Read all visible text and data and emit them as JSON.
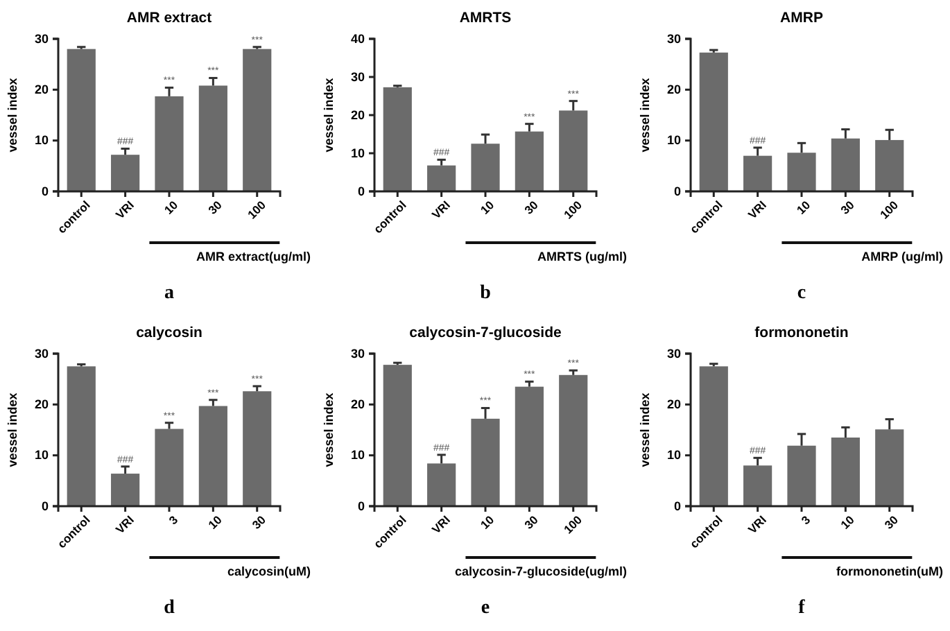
{
  "chart_data": [
    {
      "type": "bar",
      "title": "AMR extract",
      "ylabel": "vessel index",
      "xlabel": "AMR extract(ug/ml)",
      "categories": [
        "control",
        "VRI",
        "10",
        "30",
        "100"
      ],
      "values": [
        28,
        7.2,
        18.7,
        20.8,
        28
      ],
      "errors": [
        0.4,
        1.2,
        1.7,
        1.5,
        0.4
      ],
      "color": "#6b6b6b",
      "ylim": [
        0,
        30
      ],
      "yticks": [
        0,
        10,
        20,
        30
      ],
      "grid": false,
      "annotations": [
        {
          "text": "###",
          "x": "VRI",
          "y": 8.4
        },
        {
          "text": "***",
          "x": "10",
          "y": 20.4
        },
        {
          "text": "***",
          "x": "30",
          "y": 22.3
        },
        {
          "text": "***",
          "x": "100",
          "y": 28.4
        },
        "a"
      ]
    },
    {
      "type": "bar",
      "title": "AMRTS",
      "ylabel": "vessel index",
      "xlabel": "AMRTS (ug/ml)",
      "categories": [
        "control",
        "VRI",
        "10",
        "30",
        "100"
      ],
      "values": [
        27.3,
        6.8,
        12.5,
        15.7,
        21.2
      ],
      "errors": [
        0.4,
        1.5,
        2.4,
        2.0,
        2.5
      ],
      "color": "#6b6b6b",
      "ylim": [
        0,
        40
      ],
      "yticks": [
        0,
        10,
        20,
        30,
        40
      ],
      "grid": false,
      "annotations": [
        {
          "text": "###",
          "x": "VRI",
          "y": 8.3
        },
        {
          "text": "***",
          "x": "30",
          "y": 17.7
        },
        {
          "text": "***",
          "x": "100",
          "y": 23.7
        },
        "b"
      ]
    },
    {
      "type": "bar",
      "title": "AMRP",
      "ylabel": "vessel index",
      "xlabel": "AMRP (ug/ml)",
      "categories": [
        "control",
        "VRI",
        "10",
        "30",
        "100"
      ],
      "values": [
        27.3,
        7,
        7.6,
        10.4,
        10.1
      ],
      "errors": [
        0.5,
        1.6,
        1.9,
        1.8,
        2.0
      ],
      "color": "#6b6b6b",
      "ylim": [
        0,
        30
      ],
      "yticks": [
        0,
        10,
        20,
        30
      ],
      "grid": false,
      "annotations": [
        {
          "text": "###",
          "x": "VRI",
          "y": 8.6
        },
        "c"
      ]
    },
    {
      "type": "bar",
      "title": "calycosin",
      "ylabel": "vessel index",
      "xlabel": "calycosin(uM)",
      "categories": [
        "control",
        "VRI",
        "3",
        "10",
        "30"
      ],
      "values": [
        27.5,
        6.4,
        15.2,
        19.7,
        22.6
      ],
      "errors": [
        0.4,
        1.4,
        1.2,
        1.2,
        1.0
      ],
      "color": "#6b6b6b",
      "ylim": [
        0,
        30
      ],
      "yticks": [
        0,
        10,
        20,
        30
      ],
      "grid": false,
      "annotations": [
        {
          "text": "###",
          "x": "VRI",
          "y": 7.8
        },
        {
          "text": "***",
          "x": "3",
          "y": 16.4
        },
        {
          "text": "***",
          "x": "10",
          "y": 20.9
        },
        {
          "text": "***",
          "x": "30",
          "y": 23.6
        },
        "d"
      ]
    },
    {
      "type": "bar",
      "title": "calycosin-7-glucoside",
      "ylabel": "vessel index",
      "xlabel": "calycosin-7-glucoside(ug/ml)",
      "categories": [
        "control",
        "VRI",
        "10",
        "30",
        "100"
      ],
      "values": [
        27.8,
        8.4,
        17.2,
        23.5,
        25.8
      ],
      "errors": [
        0.4,
        1.7,
        2.1,
        1.0,
        0.9
      ],
      "color": "#6b6b6b",
      "ylim": [
        0,
        30
      ],
      "yticks": [
        0,
        10,
        20,
        30
      ],
      "grid": false,
      "annotations": [
        {
          "text": "###",
          "x": "VRI",
          "y": 10.1
        },
        {
          "text": "***",
          "x": "10",
          "y": 19.3
        },
        {
          "text": "***",
          "x": "30",
          "y": 24.5
        },
        {
          "text": "***",
          "x": "100",
          "y": 26.7
        },
        "e"
      ]
    },
    {
      "type": "bar",
      "title": "formononetin",
      "ylabel": "vessel index",
      "xlabel": "formononetin(uM)",
      "categories": [
        "control",
        "VRI",
        "3",
        "10",
        "30"
      ],
      "values": [
        27.5,
        8,
        11.9,
        13.5,
        15.1
      ],
      "errors": [
        0.5,
        1.5,
        2.3,
        2.0,
        2.0
      ],
      "color": "#6b6b6b",
      "ylim": [
        0,
        30
      ],
      "yticks": [
        0,
        10,
        20,
        30
      ],
      "grid": false,
      "annotations": [
        {
          "text": "###",
          "x": "VRI",
          "y": 9.5
        },
        "f"
      ]
    }
  ]
}
